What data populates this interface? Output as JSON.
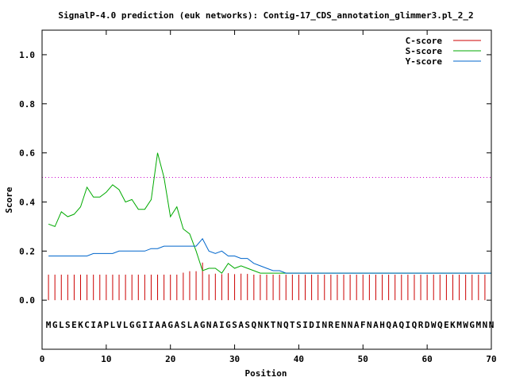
{
  "chart_data": {
    "type": "line",
    "title": "SignalP-4.0 prediction (euk networks): Contig-17_CDS_annotation_glimmer3.pl_2_2",
    "xlabel": "Position",
    "ylabel": "Score",
    "xlim": [
      0,
      70
    ],
    "ylim": [
      -0.2,
      1.1
    ],
    "xticks": [
      0,
      10,
      20,
      30,
      40,
      50,
      60,
      70
    ],
    "yticks": [
      0.0,
      0.2,
      0.4,
      0.6,
      0.8,
      1.0
    ],
    "xtick_labels": [
      "0",
      "10",
      "20",
      "30",
      "40",
      "50",
      "60",
      "70"
    ],
    "ytick_labels": [
      "0.0",
      "0.2",
      "0.4",
      "0.6",
      "0.8",
      "1.0"
    ],
    "threshold": 0.5,
    "threshold_color": "#cc00cc",
    "sequence": "MGLSEKCIAPLVLGGIIAAGASLAGNAIGSASQNKTNQTSIDINRENNAFNAHQAQIQRDWQEKMWGMNN",
    "legend_position": "top-right",
    "series": [
      {
        "name": "C-score",
        "style": "impulses",
        "color": "#cc0000",
        "values": [
          0.104,
          0.104,
          0.104,
          0.104,
          0.104,
          0.104,
          0.104,
          0.104,
          0.104,
          0.104,
          0.104,
          0.104,
          0.104,
          0.104,
          0.104,
          0.104,
          0.104,
          0.104,
          0.104,
          0.104,
          0.104,
          0.112,
          0.118,
          0.118,
          0.153,
          0.105,
          0.108,
          0.106,
          0.11,
          0.106,
          0.108,
          0.107,
          0.104,
          0.104,
          0.104,
          0.104,
          0.104,
          0.104,
          0.104,
          0.104,
          0.104,
          0.104,
          0.104,
          0.104,
          0.104,
          0.104,
          0.104,
          0.104,
          0.104,
          0.104,
          0.104,
          0.104,
          0.104,
          0.104,
          0.104,
          0.104,
          0.104,
          0.104,
          0.104,
          0.104,
          0.104,
          0.104,
          0.104,
          0.104,
          0.104,
          0.104,
          0.104,
          0.104,
          0.104,
          0.104
        ]
      },
      {
        "name": "S-score",
        "style": "line",
        "color": "#00aa00",
        "values": [
          0.31,
          0.3,
          0.36,
          0.34,
          0.35,
          0.38,
          0.46,
          0.42,
          0.42,
          0.44,
          0.47,
          0.45,
          0.4,
          0.41,
          0.37,
          0.37,
          0.41,
          0.6,
          0.5,
          0.34,
          0.38,
          0.29,
          0.27,
          0.2,
          0.12,
          0.13,
          0.13,
          0.11,
          0.15,
          0.13,
          0.14,
          0.13,
          0.12,
          0.11,
          0.11,
          0.11,
          0.11,
          0.11,
          0.11,
          0.11,
          0.11,
          0.11,
          0.11,
          0.11,
          0.11,
          0.11,
          0.11,
          0.11,
          0.11,
          0.11,
          0.11,
          0.11,
          0.11,
          0.11,
          0.11,
          0.11,
          0.11,
          0.11,
          0.11,
          0.11,
          0.11,
          0.11,
          0.11,
          0.11,
          0.11,
          0.11,
          0.11,
          0.11,
          0.11,
          0.11
        ]
      },
      {
        "name": "Y-score",
        "style": "line",
        "color": "#0066cc",
        "values": [
          0.18,
          0.18,
          0.18,
          0.18,
          0.18,
          0.18,
          0.18,
          0.19,
          0.19,
          0.19,
          0.19,
          0.2,
          0.2,
          0.2,
          0.2,
          0.2,
          0.21,
          0.21,
          0.22,
          0.22,
          0.22,
          0.22,
          0.22,
          0.22,
          0.25,
          0.2,
          0.19,
          0.2,
          0.18,
          0.18,
          0.17,
          0.17,
          0.15,
          0.14,
          0.13,
          0.12,
          0.12,
          0.11,
          0.11,
          0.11,
          0.11,
          0.11,
          0.11,
          0.11,
          0.11,
          0.11,
          0.11,
          0.11,
          0.11,
          0.11,
          0.11,
          0.11,
          0.11,
          0.11,
          0.11,
          0.11,
          0.11,
          0.11,
          0.11,
          0.11,
          0.11,
          0.11,
          0.11,
          0.11,
          0.11,
          0.11,
          0.11,
          0.11,
          0.11,
          0.11
        ]
      }
    ]
  }
}
